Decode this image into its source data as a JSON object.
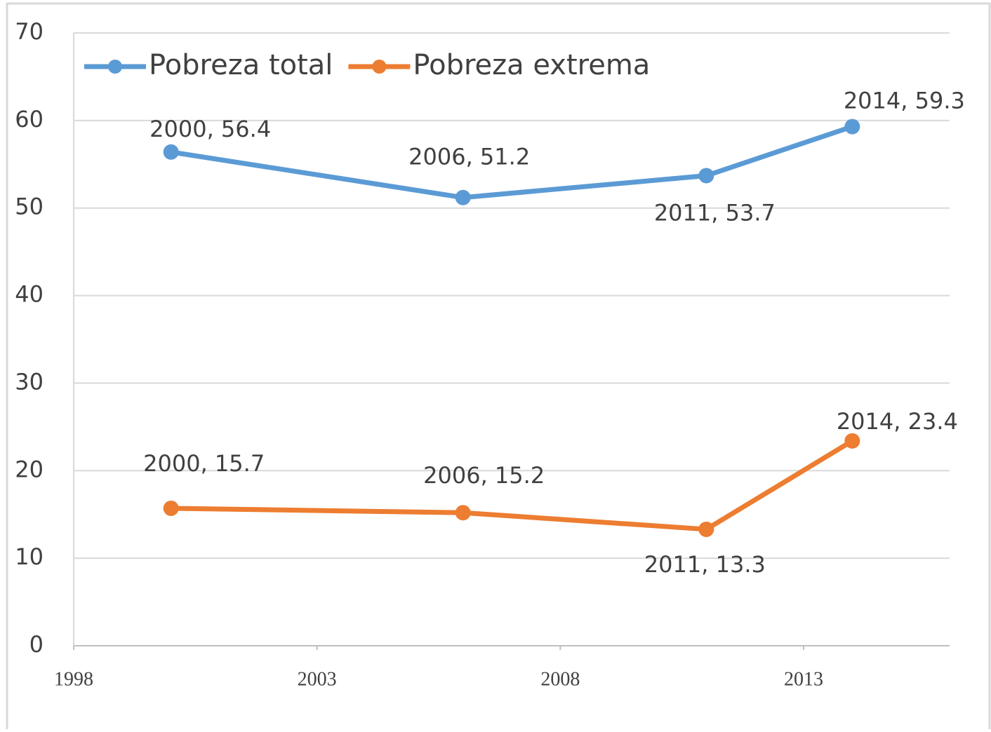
{
  "chart_data": {
    "type": "line",
    "x": [
      2000,
      2006,
      2011,
      2014
    ],
    "series": [
      {
        "name": "Pobreza total",
        "color": "#5b9bd5",
        "values": [
          56.4,
          51.2,
          53.7,
          59.3
        ],
        "value_labels": [
          "2000, 56.4",
          "2006, 51.2",
          "2011, 53.7",
          "2014, 59.3"
        ]
      },
      {
        "name": "Pobreza extrema",
        "color": "#ed7d31",
        "values": [
          15.7,
          15.2,
          13.3,
          23.4
        ],
        "value_labels": [
          "2000, 15.7",
          "2006, 15.2",
          "2011, 13.3",
          "2014, 23.4"
        ]
      }
    ],
    "xlim": [
      1998,
      2016
    ],
    "xticks": [
      1998,
      2003,
      2008,
      2013
    ],
    "ylim": [
      0,
      70
    ],
    "yticks": [
      0,
      10,
      20,
      30,
      40,
      50,
      60,
      70
    ],
    "grid": true,
    "legend": "top-left"
  }
}
